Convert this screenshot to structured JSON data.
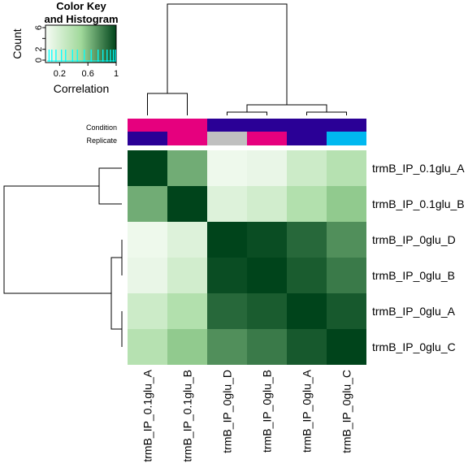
{
  "chart_data": {
    "type": "heatmap",
    "title": "",
    "rows": [
      "trmB_IP_0.1glu_A",
      "trmB_IP_0.1glu_B",
      "trmB_IP_0glu_D",
      "trmB_IP_0glu_B",
      "trmB_IP_0glu_A",
      "trmB_IP_0glu_C"
    ],
    "columns": [
      "trmB_IP_0.1glu_A",
      "trmB_IP_0.1glu_B",
      "trmB_IP_0glu_D",
      "trmB_IP_0glu_B",
      "trmB_IP_0glu_A",
      "trmB_IP_0glu_C"
    ],
    "values": [
      [
        1.0,
        0.65,
        0.05,
        0.08,
        0.25,
        0.38
      ],
      [
        0.65,
        1.0,
        0.15,
        0.22,
        0.4,
        0.55
      ],
      [
        0.05,
        0.15,
        1.0,
        0.97,
        0.88,
        0.75
      ],
      [
        0.08,
        0.22,
        0.97,
        1.0,
        0.92,
        0.82
      ],
      [
        0.25,
        0.4,
        0.88,
        0.92,
        1.0,
        0.93
      ],
      [
        0.38,
        0.55,
        0.75,
        0.82,
        0.93,
        1.0
      ]
    ],
    "color_scale": {
      "low": "#f7fcf5",
      "mid": "#a1d99b",
      "high": "#00441b",
      "range": [
        0,
        1
      ]
    },
    "annotations": {
      "labels": [
        "Condition",
        "Replicate"
      ],
      "condition_colors": [
        "#e6007e",
        "#e6007e",
        "#2a0096",
        "#2a0096",
        "#2a0096",
        "#2a0096"
      ],
      "replicate_colors": [
        "#2a0096",
        "#e6007e",
        "#c0c0c0",
        "#e6007e",
        "#2a0096",
        "#00b8f0"
      ]
    },
    "color_key": {
      "title_line1": "Color Key",
      "title_line2": "and Histogram",
      "xlabel": "Correlation",
      "ylabel": "Count",
      "x_ticks": [
        "0.2",
        "0.6",
        "1"
      ],
      "y_ticks": [
        "0",
        "2",
        "4",
        "6"
      ],
      "histogram_color": "#00ffff"
    },
    "legend": "top-left"
  }
}
